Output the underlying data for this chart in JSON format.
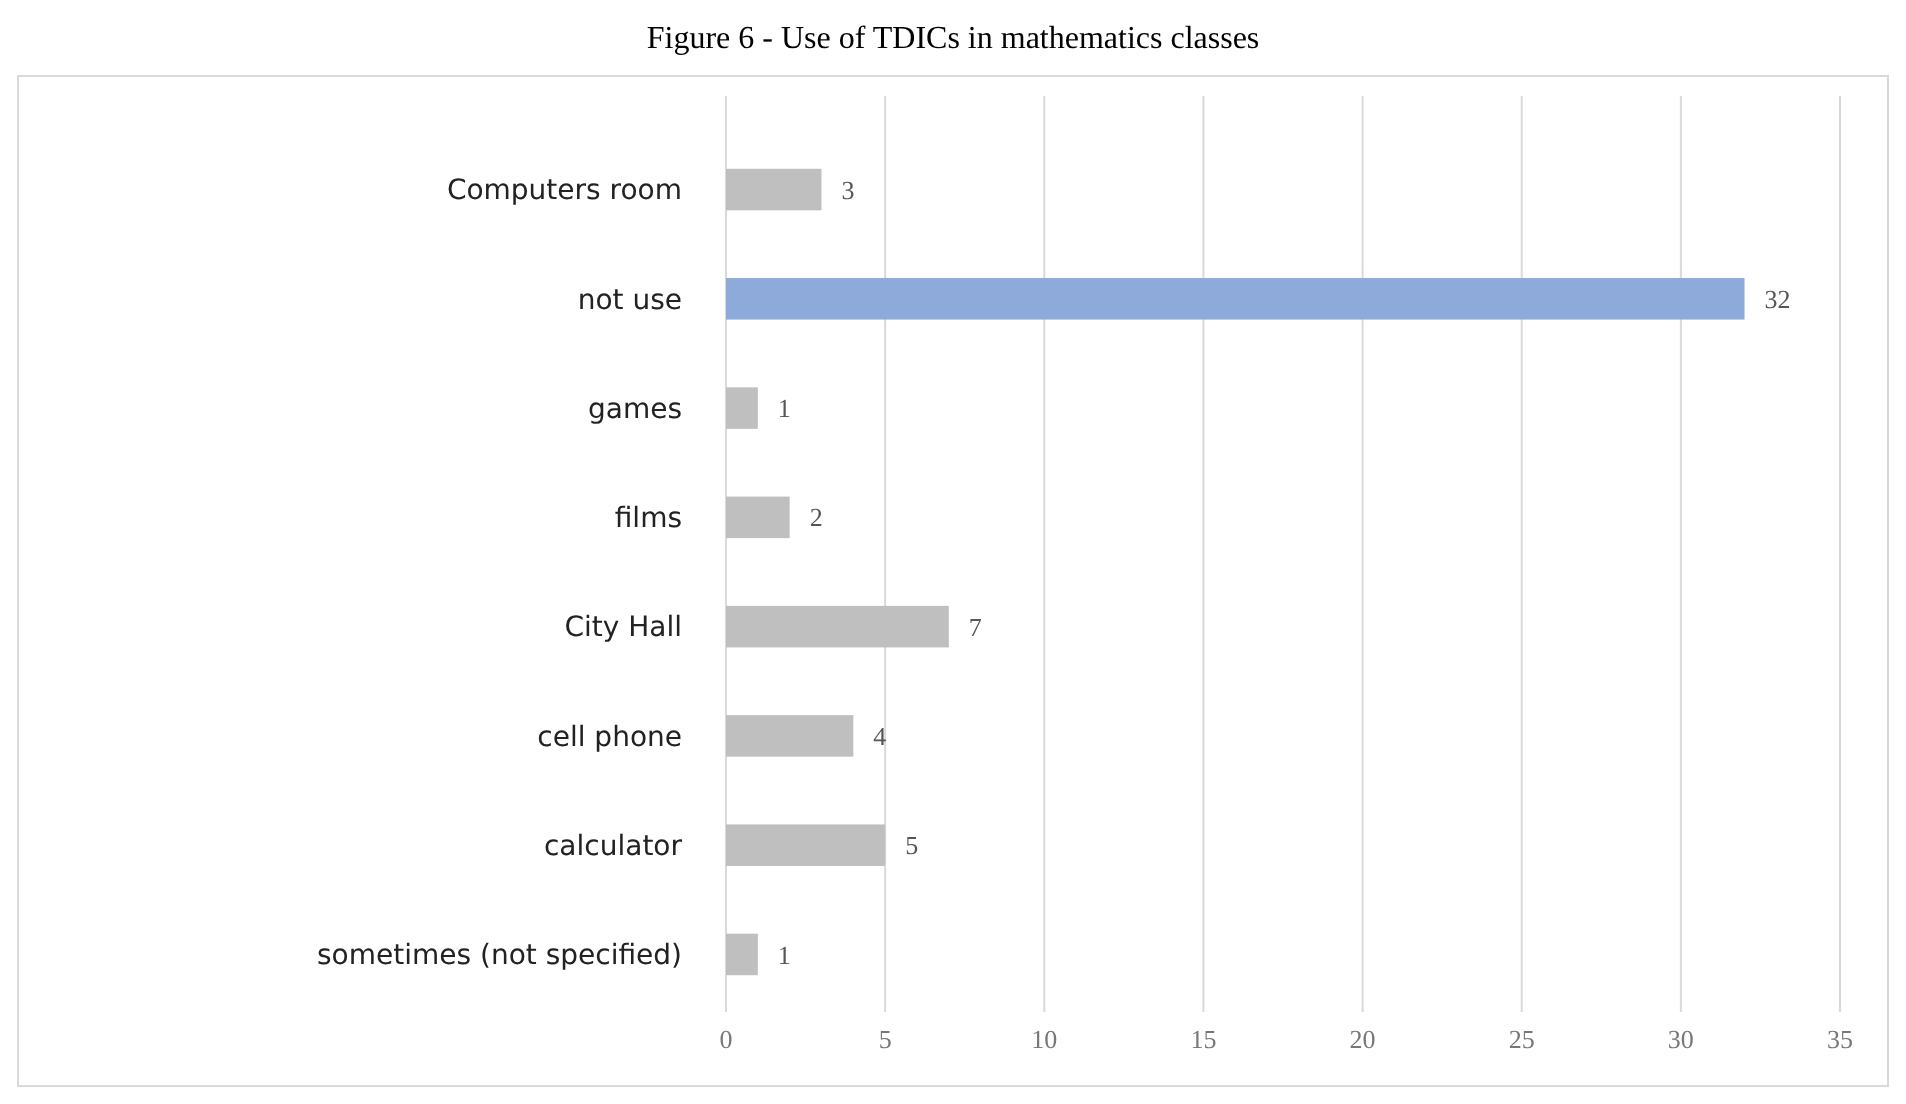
{
  "chart_data": {
    "type": "bar",
    "orientation": "horizontal",
    "title": "Figure 6 - Use of TDICs in mathematics classes",
    "categories": [
      "Computers room",
      "not use",
      "games",
      "films",
      "City Hall",
      "cell phone",
      "calculator",
      "sometimes (not specified)"
    ],
    "values": [
      3,
      32,
      1,
      2,
      7,
      4,
      5,
      1
    ],
    "colors": [
      "#bfbfbf",
      "#8eaadb",
      "#bfbfbf",
      "#bfbfbf",
      "#bfbfbf",
      "#bfbfbf",
      "#bfbfbf",
      "#bfbfbf"
    ],
    "data_labels": true,
    "xlim": [
      0,
      35
    ],
    "xticks": [
      0,
      5,
      10,
      15,
      20,
      25,
      30,
      35
    ],
    "grid": "x"
  }
}
